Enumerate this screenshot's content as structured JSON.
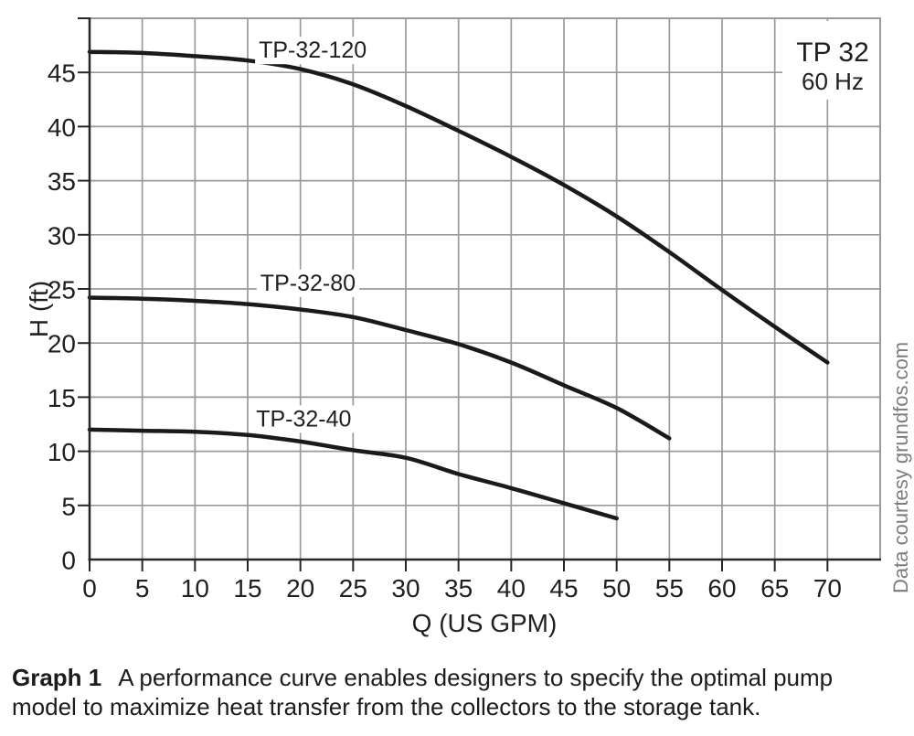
{
  "figure": {
    "corner_label": {
      "model": "TP 32",
      "frequency": "60 Hz"
    },
    "side_note": "Data courtesy grundfos.com",
    "caption": {
      "label": "Graph 1",
      "line1": "A performance curve enables designers to specify the optimal pump",
      "line2": "model to maximize heat transfer from the collectors to the storage tank."
    }
  },
  "chart_data": {
    "type": "line",
    "title": "TP 32",
    "subtitle": "60 Hz",
    "xlabel": "Q (US GPM)",
    "ylabel": "H (ft)",
    "xlim": [
      0,
      75
    ],
    "ylim": [
      0,
      50
    ],
    "xticks": [
      0,
      5,
      10,
      15,
      20,
      25,
      30,
      35,
      40,
      45,
      50,
      55,
      60,
      65,
      70
    ],
    "yticks": [
      0,
      5,
      10,
      15,
      20,
      25,
      30,
      35,
      40,
      45
    ],
    "grid": true,
    "legend_position": "inline-labels",
    "series": [
      {
        "name": "TP-32-120",
        "label_pos": {
          "q": 16.05,
          "h": 46.35
        },
        "points": [
          [
            0,
            46.9
          ],
          [
            5,
            46.8
          ],
          [
            10,
            46.5
          ],
          [
            15,
            46.1
          ],
          [
            20,
            45.3
          ],
          [
            25,
            43.9
          ],
          [
            30,
            41.9
          ],
          [
            35,
            39.6
          ],
          [
            40,
            37.2
          ],
          [
            45,
            34.6
          ],
          [
            50,
            31.7
          ],
          [
            55,
            28.4
          ],
          [
            60,
            24.9
          ],
          [
            65,
            21.5
          ],
          [
            70,
            18.2
          ]
        ]
      },
      {
        "name": "TP-32-80",
        "label_pos": {
          "q": 16.2,
          "h": 24.85
        },
        "points": [
          [
            0,
            24.2
          ],
          [
            5,
            24.1
          ],
          [
            10,
            23.9
          ],
          [
            15,
            23.6
          ],
          [
            20,
            23.1
          ],
          [
            25,
            22.4
          ],
          [
            30,
            21.2
          ],
          [
            35,
            19.9
          ],
          [
            40,
            18.2
          ],
          [
            45,
            16.1
          ],
          [
            50,
            14
          ],
          [
            55,
            11.2
          ]
        ]
      },
      {
        "name": "TP-32-40",
        "label_pos": {
          "q": 15.8,
          "h": 12.3
        },
        "points": [
          [
            0,
            12
          ],
          [
            5,
            11.9
          ],
          [
            10,
            11.8
          ],
          [
            15,
            11.5
          ],
          [
            20,
            10.9
          ],
          [
            25,
            10.1
          ],
          [
            30,
            9.4
          ],
          [
            35,
            7.9
          ],
          [
            40,
            6.6
          ],
          [
            45,
            5.2
          ],
          [
            50,
            3.8
          ]
        ]
      }
    ]
  },
  "style": {
    "curve_color": "#1a1a1a",
    "grid_color": "#9a9a9a",
    "axis_color": "#262626",
    "text_color": "#1f1f1f",
    "side_note_color": "#7d7d7d",
    "background": "#ffffff"
  }
}
